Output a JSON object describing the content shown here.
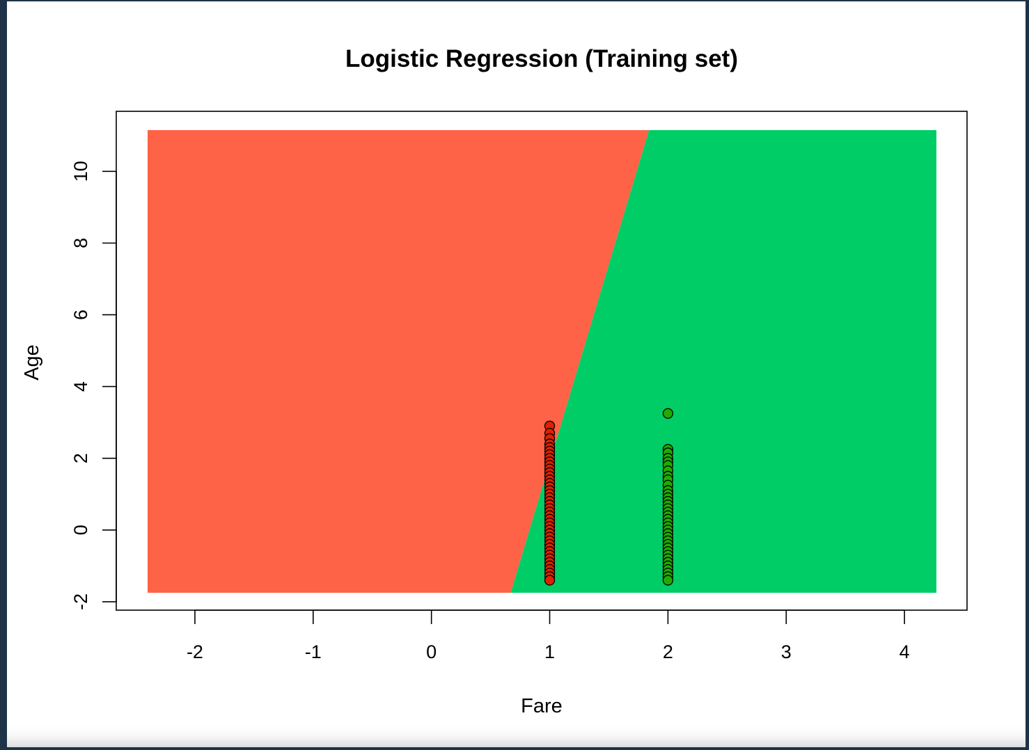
{
  "chart_data": {
    "type": "scatter",
    "title": "Logistic Regression (Training set)",
    "xlabel": "Fare",
    "ylabel": "Age",
    "xlim": [
      -2.4,
      4.27
    ],
    "ylim": [
      -1.75,
      11.15
    ],
    "x_ticks": [
      -2,
      -1,
      0,
      1,
      2,
      3,
      4
    ],
    "y_ticks": [
      -2,
      0,
      2,
      4,
      6,
      8,
      10
    ],
    "grid": false,
    "legend": "none",
    "decision_regions": {
      "boundary_line": [
        [
          0.67,
          -1.75
        ],
        [
          1.84,
          11.15
        ]
      ],
      "left_class_color": "#ff6347",
      "right_class_color": "#00cd66"
    },
    "series": [
      {
        "color": "#dd2200",
        "x": 1,
        "y": [
          2.9,
          2.7,
          2.55,
          2.4,
          2.3,
          2.2,
          2.1,
          2.0,
          1.9,
          1.8,
          1.7,
          1.6,
          1.5,
          1.4,
          1.3,
          1.2,
          1.1,
          1.0,
          0.9,
          0.8,
          0.7,
          0.6,
          0.5,
          0.4,
          0.3,
          0.2,
          0.1,
          0.0,
          -0.1,
          -0.2,
          -0.3,
          -0.4,
          -0.5,
          -0.6,
          -0.7,
          -0.8,
          -0.9,
          -1.0,
          -1.1,
          -1.2,
          -1.3,
          -1.4
        ]
      },
      {
        "color": "#22aa00",
        "x": 2,
        "y": [
          3.25,
          2.25,
          2.15,
          2.0,
          1.9,
          1.8,
          1.65,
          1.5,
          1.4,
          1.25,
          1.1,
          1.0,
          0.9,
          0.8,
          0.7,
          0.6,
          0.5,
          0.4,
          0.3,
          0.2,
          0.1,
          0.0,
          -0.1,
          -0.2,
          -0.3,
          -0.4,
          -0.5,
          -0.6,
          -0.7,
          -0.8,
          -0.9,
          -1.0,
          -1.1,
          -1.2,
          -1.3,
          -1.4
        ]
      }
    ]
  }
}
